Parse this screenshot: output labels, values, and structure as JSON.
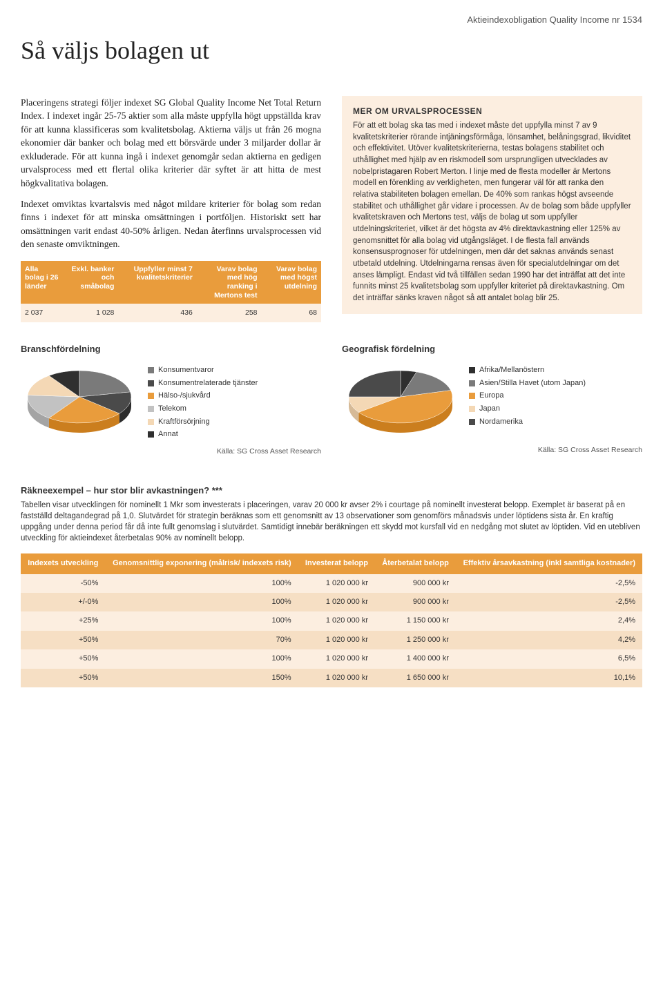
{
  "header_line": "Aktieindexobligation Quality Income nr 1534",
  "title": "Så väljs bolagen ut",
  "body_left": {
    "p1": "Placeringens strategi följer indexet SG Global Quality Income Net Total Return Index. I indexet ingår 25-75 aktier som alla måste uppfylla högt uppställda krav för att kunna klassificeras som kvalitetsbolag. Aktierna väljs ut från 26 mogna ekonomier där banker och bolag med ett börsvärde under 3 miljarder dollar är exkluderade. För att kunna ingå i indexet genomgår sedan aktierna en gedigen urvalsprocess med ett flertal olika kriterier där syftet är att hitta de mest högkvalitativa bolagen.",
    "p2": "Indexet omviktas kvartalsvis med något mildare kriterier för bolag som redan finns i indexet för att minska omsättningen i portföljen. Historiskt sett har omsättningen varit endast 40-50% årligen. Nedan återfinns urvalsprocessen vid den senaste omviktningen."
  },
  "filter_table": {
    "headers": [
      "Alla bolag i 26 länder",
      "Exkl. banker och småbolag",
      "Uppfyller minst 7 kvalitetskriterier",
      "Varav bolag med hög ranking i Mertons test",
      "Varav bolag med högst utdelning"
    ],
    "values": [
      "2 037",
      "1 028",
      "436",
      "258",
      "68"
    ],
    "header_bg": "#e99c3c",
    "header_fg": "#ffffff",
    "row_bg": "#fceee0"
  },
  "info_box": {
    "title": "MER OM URVALSPROCESSEN",
    "text": "För att ett bolag ska tas med i indexet måste det uppfylla minst 7 av 9 kvalitetskriterier rörande intjäningsförmåga, lönsamhet, belåningsgrad, likviditet och effektivitet. Utöver kvalitetskriterierna, testas bolagens stabilitet och uthållighet med hjälp av en riskmodell som ursprungligen utvecklades av nobelpristagaren Robert Merton. I linje med de flesta modeller är Mertons modell en förenkling av verkligheten, men fungerar väl för att ranka den relativa stabiliteten bolagen emellan. De 40% som rankas högst avseende stabilitet och uthållighet går vidare i processen. Av de bolag som både uppfyller kvalitetskraven och Mertons test, väljs de bolag ut som uppfyller utdelningskriteriet, vilket är det högsta av 4% direktavkastning eller 125% av genomsnittet för alla bolag vid utgångsläget. I de flesta fall används konsensusprognoser för utdelningen, men där det saknas används senast utbetald utdelning. Utdelningarna rensas även för specialutdelningar om det anses lämpligt. Endast vid två tillfällen sedan 1990 har det inträffat att det inte funnits minst 25 kvalitetsbolag som uppfyller kriteriet på direktavkastning. Om det inträffar sänks kraven något så att antalet bolag blir 25.",
    "bg": "#fceee0"
  },
  "pies": {
    "sector": {
      "title": "Branschfördelning",
      "legend": [
        "Konsumentvaror",
        "Konsumentrelaterade tjänster",
        "Hälso-/sjukvård",
        "Telekom",
        "Kraftförsörjning",
        "Annat"
      ],
      "colors": [
        "#7a7a7a",
        "#4a4a4a",
        "#e99c3c",
        "#c2c2c2",
        "#f4d8b5",
        "#2f2f2f"
      ],
      "values": [
        22,
        14,
        24,
        16,
        14,
        10
      ]
    },
    "geo": {
      "title": "Geografisk fördelning",
      "legend": [
        "Afrika/Mellanöstern",
        "Asien/Stilla Havet (utom Japan)",
        "Europa",
        "Japan",
        "Nordamerika"
      ],
      "colors": [
        "#2f2f2f",
        "#7a7a7a",
        "#e99c3c",
        "#f4d8b5",
        "#4a4a4a"
      ],
      "values": [
        5,
        16,
        44,
        10,
        25
      ]
    },
    "source": "Källa: SG Cross Asset Research"
  },
  "calc": {
    "title": "Räkneexempel – hur stor blir avkastningen? ***",
    "intro": "Tabellen visar utvecklingen för nominellt 1 Mkr som investerats i placeringen, varav 20 000 kr avser 2% i courtage på nominellt investerat belopp. Exemplet är baserat på en fastställd deltagandegrad på 1,0. Slutvärdet för strategin beräknas som ett genomsnitt av 13 observationer som genomförs månadsvis under löptidens sista år. En kraftig uppgång under denna period får då inte fullt genomslag i slutvärdet. Samtidigt innebär beräkningen ett skydd mot kursfall vid en nedgång mot slutet av löptiden. Vid en utebliven utveckling för aktieindexet återbetalas 90% av nominellt belopp.",
    "headers": [
      "Indexets utveckling",
      "Genomsnittlig exponering (målrisk/ indexets risk)",
      "Investerat belopp",
      "Återbetalat belopp",
      "Effektiv årsavkastning (inkl samtliga kostnader)"
    ],
    "rows": [
      [
        "-50%",
        "100%",
        "1 020 000 kr",
        "900 000 kr",
        "-2,5%"
      ],
      [
        "+/-0%",
        "100%",
        "1 020 000 kr",
        "900 000 kr",
        "-2,5%"
      ],
      [
        "+25%",
        "100%",
        "1 020 000 kr",
        "1 150 000 kr",
        "2,4%"
      ],
      [
        "+50%",
        "70%",
        "1 020 000 kr",
        "1 250 000 kr",
        "4,2%"
      ],
      [
        "+50%",
        "100%",
        "1 020 000 kr",
        "1 400 000 kr",
        "6,5%"
      ],
      [
        "+50%",
        "150%",
        "1 020 000 kr",
        "1 650 000 kr",
        "10,1%"
      ]
    ],
    "header_bg": "#e99c3c",
    "row_light": "#fceee0",
    "row_dark": "#f6dfc4"
  }
}
